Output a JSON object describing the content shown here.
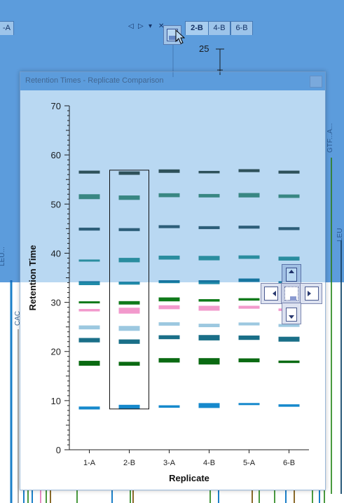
{
  "tabs": [
    {
      "label": "-A",
      "active": false
    },
    {
      "label": "2-B",
      "active": true
    },
    {
      "label": "4-B",
      "active": false
    },
    {
      "label": "6-B",
      "active": false
    }
  ],
  "tab_nav_glyphs": [
    "◁",
    "▷",
    "▾",
    "✕"
  ],
  "background": {
    "tick_label_25": "25",
    "side_labels": [
      "GTF...A...",
      "LEU",
      "CAC",
      "LEU..."
    ]
  },
  "window": {
    "title": "Retention Times - Replicate Comparison"
  },
  "colors": {
    "blue_overlay": "#7fb8e8",
    "dark_slate": "#3f5f5f",
    "teal_mid": "#4ea08a",
    "steel": "#3d6f80",
    "teal_light": "#3aa6a8",
    "teal_blue": "#1f8aa8",
    "green": "#0f7a1a",
    "pink": "#f299cc",
    "light_blue": "#9cc8e0",
    "deep_teal": "#1a6f88",
    "dark_green": "#0a6a12",
    "bright_blue": "#1689cc"
  },
  "chart_data": {
    "type": "bar",
    "xlabel": "Replicate",
    "ylabel": "Retention Time",
    "categories": [
      "1-A",
      "2-B",
      "3-A",
      "4-B",
      "5-A",
      "6-B"
    ],
    "ylim": [
      0,
      70
    ],
    "yticks": [
      0,
      10,
      20,
      30,
      40,
      50,
      60,
      70
    ],
    "selected_category": "2-B",
    "selection_range": [
      8.3,
      56.9
    ],
    "series": [
      {
        "color": "#3f5f5f",
        "values": [
          56.5,
          56.3,
          56.7,
          56.5,
          56.8,
          56.5
        ],
        "widths": [
          0.6,
          0.7,
          0.7,
          0.5,
          0.6,
          0.6
        ]
      },
      {
        "color": "#4ea08a",
        "values": [
          51.5,
          51.3,
          51.8,
          51.7,
          51.8,
          51.6
        ],
        "widths": [
          1.0,
          0.9,
          0.8,
          0.7,
          0.9,
          0.7
        ]
      },
      {
        "color": "#3d6f80",
        "values": [
          44.9,
          44.8,
          45.4,
          45.2,
          45.3,
          45.0
        ],
        "widths": [
          0.6,
          0.6,
          0.6,
          0.6,
          0.6,
          0.6
        ]
      },
      {
        "color": "#3aa6a8",
        "values": [
          38.5,
          38.6,
          39.1,
          39.0,
          39.2,
          38.9
        ],
        "widths": [
          0.4,
          0.9,
          0.8,
          0.9,
          0.7,
          0.8
        ]
      },
      {
        "color": "#1f8aa8",
        "values": [
          33.9,
          33.9,
          34.2,
          34.1,
          34.5,
          34.0
        ],
        "widths": [
          0.8,
          0.6,
          0.6,
          0.8,
          0.7,
          0.6
        ]
      },
      {
        "color": "#0f7a1a",
        "values": [
          30.0,
          29.9,
          30.6,
          30.4,
          30.6,
          30.2
        ],
        "widths": [
          0.4,
          0.7,
          0.8,
          0.5,
          0.5,
          0.5
        ]
      },
      {
        "color": "#f299cc",
        "values": [
          28.4,
          28.3,
          29.0,
          28.8,
          29.0,
          28.5
        ],
        "widths": [
          0.5,
          1.2,
          0.8,
          1.0,
          0.6,
          0.5
        ]
      },
      {
        "color": "#9cc8e0",
        "values": [
          24.9,
          24.7,
          25.6,
          25.3,
          25.6,
          25.3
        ],
        "widths": [
          0.8,
          1.0,
          0.7,
          0.7,
          0.6,
          0.6
        ]
      },
      {
        "color": "#1a6f88",
        "values": [
          22.3,
          22.0,
          22.9,
          22.8,
          22.8,
          22.5
        ],
        "widths": [
          0.9,
          0.9,
          0.8,
          1.1,
          0.9,
          1.0
        ]
      },
      {
        "color": "#0a6a12",
        "values": [
          17.6,
          17.5,
          18.2,
          18.0,
          18.2,
          17.9
        ],
        "widths": [
          1.0,
          0.8,
          0.9,
          1.3,
          0.8,
          0.5
        ]
      },
      {
        "color": "#1689cc",
        "values": [
          8.5,
          8.7,
          8.8,
          9.0,
          9.3,
          9.0
        ],
        "widths": [
          0.6,
          0.9,
          0.5,
          1.0,
          0.4,
          0.5
        ]
      }
    ]
  }
}
